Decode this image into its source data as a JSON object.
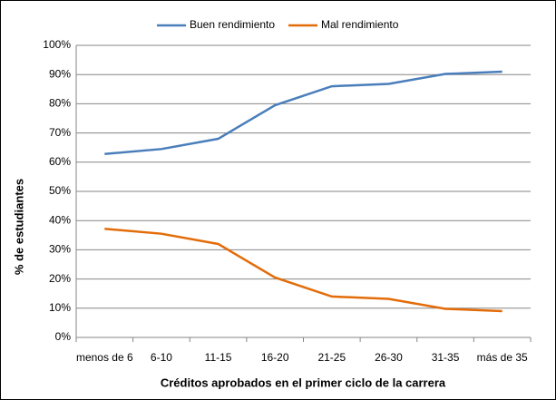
{
  "chart_data": {
    "type": "line",
    "categories": [
      "menos de 6",
      "6-10",
      "11-15",
      "16-20",
      "21-25",
      "26-30",
      "31-35",
      "más de 35"
    ],
    "series": [
      {
        "name": "Buen rendimiento",
        "color": "#4a7ebb",
        "values": [
          62.8,
          64.5,
          68,
          79.5,
          86,
          86.8,
          90.2,
          91
        ]
      },
      {
        "name": "Mal rendimiento",
        "color": "#e36c09",
        "values": [
          37.2,
          35.5,
          32,
          20.5,
          14,
          13.2,
          9.8,
          9
        ]
      }
    ],
    "x_label": "Créditos aprobados en el primer ciclo de la carrera",
    "y_label": "% de estudiantes",
    "ylim": [
      0,
      100
    ],
    "yticks": [
      {
        "value": 0,
        "label": "0%"
      },
      {
        "value": 10,
        "label": "10%"
      },
      {
        "value": 20,
        "label": "20%"
      },
      {
        "value": 30,
        "label": "30%"
      },
      {
        "value": 40,
        "label": "40%"
      },
      {
        "value": 50,
        "label": "50%"
      },
      {
        "value": 60,
        "label": "60%"
      },
      {
        "value": 70,
        "label": "70%"
      },
      {
        "value": 80,
        "label": "80%"
      },
      {
        "value": 90,
        "label": "90%"
      },
      {
        "value": 100,
        "label": "100%"
      }
    ],
    "grid": true,
    "legend": "top"
  }
}
